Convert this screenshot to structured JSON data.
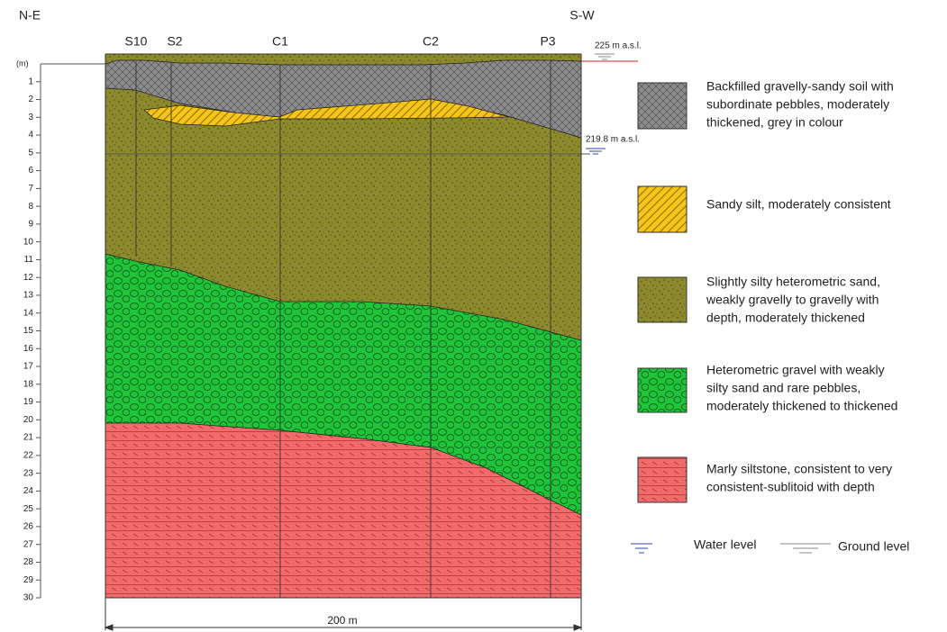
{
  "header": {
    "left": "N-E",
    "right": "S-W"
  },
  "boreholes": [
    {
      "label": "S10"
    },
    {
      "label": "S2"
    },
    {
      "label": "C1"
    },
    {
      "label": "C2"
    },
    {
      "label": "P3"
    }
  ],
  "elevations": {
    "top": "225 m a.s.l.",
    "water": "219.8 m a.s.l."
  },
  "depth_axis": {
    "unit": "(m)",
    "ticks": [
      1,
      2,
      3,
      4,
      5,
      6,
      7,
      8,
      9,
      10,
      11,
      12,
      13,
      14,
      15,
      16,
      17,
      18,
      19,
      20,
      21,
      22,
      23,
      24,
      25,
      26,
      27,
      28,
      29,
      30
    ]
  },
  "scale_label": "200 m",
  "legend": [
    {
      "lines": [
        "Backfilled gravelly-sandy soil with",
        "subordinate pebbles, moderately",
        "thickened, grey in colour"
      ]
    },
    {
      "lines": [
        "Sandy silt, moderately consistent"
      ]
    },
    {
      "lines": [
        "Slightly silty heterometric sand,",
        "weakly gravelly to gravelly with",
        "depth, moderately thickened"
      ]
    },
    {
      "lines": [
        "Heterometric gravel with weakly",
        "silty sand and rare pebbles,",
        "moderately thickened to thickened"
      ]
    },
    {
      "lines": [
        "Marly siltstone, consistent to very",
        "consistent-sublitoid with depth"
      ]
    }
  ],
  "symbols": {
    "water": "Water level",
    "ground": "Ground level"
  }
}
